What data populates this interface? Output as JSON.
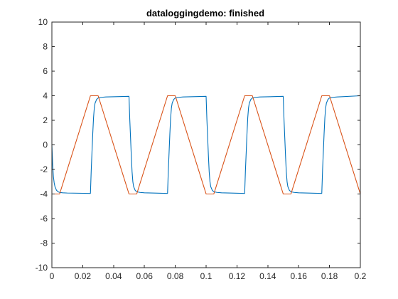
{
  "window": {
    "title": "dataloggingdemo: finished"
  },
  "chart_data": {
    "type": "line",
    "title": "dataloggingdemo: finished",
    "xlabel": "",
    "ylabel": "",
    "xlim": [
      0,
      0.2
    ],
    "ylim": [
      -10,
      10
    ],
    "xticks": [
      0,
      0.02,
      0.04,
      0.06,
      0.08,
      0.1,
      0.12,
      0.14,
      0.16,
      0.18,
      0.2
    ],
    "xtick_labels": [
      "0",
      "0.02",
      "0.04",
      "0.06",
      "0.08",
      "0.1",
      "0.12",
      "0.14",
      "0.16",
      "0.18",
      "0.2"
    ],
    "yticks": [
      -10,
      -8,
      -6,
      -4,
      -2,
      0,
      2,
      4,
      6,
      8,
      10
    ],
    "ytick_labels": [
      "-10",
      "-8",
      "-6",
      "-4",
      "-2",
      "0",
      "2",
      "4",
      "6",
      "8",
      "10"
    ],
    "grid": false,
    "box": true,
    "series": [
      {
        "color": "#0072BD",
        "x": [
          0,
          0.0005,
          0.001,
          0.0015,
          0.002,
          0.003,
          0.004,
          0.005,
          0.007,
          0.01,
          0.025,
          0.0255,
          0.026,
          0.0265,
          0.027,
          0.0275,
          0.028,
          0.029,
          0.03,
          0.032,
          0.035,
          0.05,
          0.0505,
          0.051,
          0.0515,
          0.052,
          0.0525,
          0.053,
          0.054,
          0.055,
          0.057,
          0.06,
          0.075,
          0.0755,
          0.076,
          0.0765,
          0.077,
          0.0775,
          0.078,
          0.079,
          0.08,
          0.082,
          0.085,
          0.1,
          0.1005,
          0.101,
          0.1015,
          0.102,
          0.1025,
          0.103,
          0.104,
          0.105,
          0.107,
          0.11,
          0.125,
          0.1255,
          0.126,
          0.1265,
          0.127,
          0.1275,
          0.128,
          0.129,
          0.13,
          0.132,
          0.135,
          0.15,
          0.1505,
          0.151,
          0.1515,
          0.152,
          0.1525,
          0.153,
          0.154,
          0.155,
          0.157,
          0.16,
          0.175,
          0.1755,
          0.176,
          0.1765,
          0.177,
          0.1775,
          0.178,
          0.179,
          0.18,
          0.182,
          0.185,
          0.2
        ],
        "y": [
          0,
          -1.6,
          -2.6,
          -3.1,
          -3.4,
          -3.7,
          -3.82,
          -3.87,
          -3.9,
          -3.92,
          -3.95,
          -2.1,
          -0.6,
          0.9,
          2.2,
          3.0,
          3.4,
          3.7,
          3.82,
          3.87,
          3.9,
          3.95,
          2.1,
          0.6,
          -0.9,
          -2.2,
          -3.0,
          -3.4,
          -3.7,
          -3.82,
          -3.87,
          -3.9,
          -3.95,
          -2.1,
          -0.6,
          0.9,
          2.2,
          3.0,
          3.4,
          3.7,
          3.82,
          3.87,
          3.9,
          3.95,
          2.1,
          0.6,
          -0.9,
          -2.2,
          -3.0,
          -3.4,
          -3.7,
          -3.82,
          -3.87,
          -3.9,
          -3.95,
          -2.1,
          -0.6,
          0.9,
          2.2,
          3.0,
          3.4,
          3.7,
          3.82,
          3.87,
          3.9,
          3.95,
          2.1,
          0.6,
          -0.9,
          -2.2,
          -3.0,
          -3.4,
          -3.7,
          -3.82,
          -3.87,
          -3.9,
          -3.95,
          -2.1,
          -0.6,
          0.9,
          2.2,
          3.0,
          3.4,
          3.7,
          3.82,
          3.87,
          3.9,
          4.0
        ]
      },
      {
        "color": "#D95319",
        "x": [
          0,
          0.005,
          0.025,
          0.03,
          0.05,
          0.055,
          0.075,
          0.08,
          0.1,
          0.105,
          0.125,
          0.13,
          0.15,
          0.155,
          0.175,
          0.18,
          0.2
        ],
        "y": [
          -4,
          -4,
          4,
          4,
          -4,
          -4,
          4,
          4,
          -4,
          -4,
          4,
          4,
          -4,
          -4,
          4,
          4,
          -4
        ]
      }
    ]
  }
}
